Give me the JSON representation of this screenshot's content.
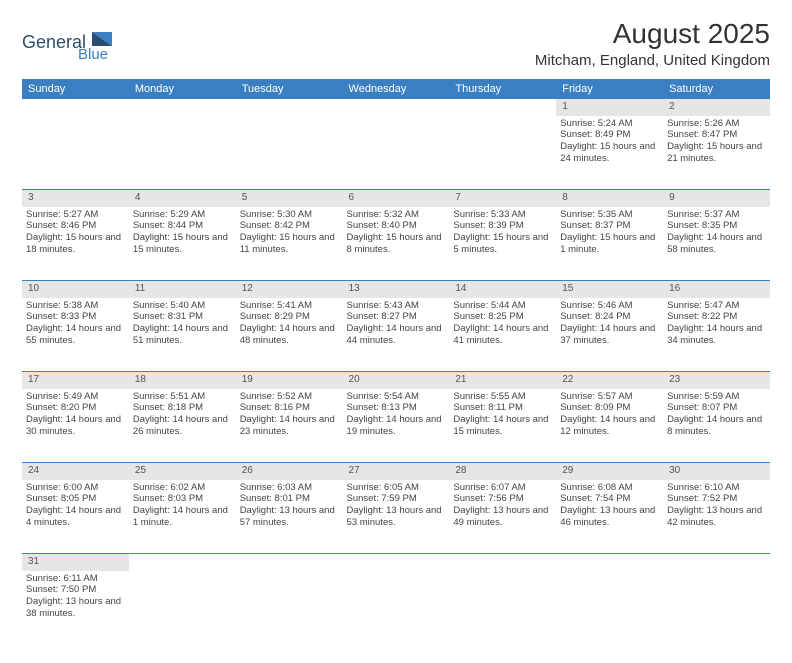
{
  "brand": {
    "name1": "General",
    "name2": "Blue",
    "color_dark": "#2a4e73",
    "color_blue": "#3a7fc2"
  },
  "title": "August 2025",
  "location": "Mitcham, England, United Kingdom",
  "header_bg": "#3a7fc2",
  "header_text_color": "#ffffff",
  "daynum_bg": "#e6e6e6",
  "border_color": "#3a7fc2",
  "text_color": "#444444",
  "day_headers": [
    "Sunday",
    "Monday",
    "Tuesday",
    "Wednesday",
    "Thursday",
    "Friday",
    "Saturday"
  ],
  "weeks": [
    [
      null,
      null,
      null,
      null,
      null,
      {
        "n": "1",
        "sr": "Sunrise: 5:24 AM",
        "ss": "Sunset: 8:49 PM",
        "dl": "Daylight: 15 hours and 24 minutes."
      },
      {
        "n": "2",
        "sr": "Sunrise: 5:26 AM",
        "ss": "Sunset: 8:47 PM",
        "dl": "Daylight: 15 hours and 21 minutes."
      }
    ],
    [
      {
        "n": "3",
        "sr": "Sunrise: 5:27 AM",
        "ss": "Sunset: 8:46 PM",
        "dl": "Daylight: 15 hours and 18 minutes."
      },
      {
        "n": "4",
        "sr": "Sunrise: 5:29 AM",
        "ss": "Sunset: 8:44 PM",
        "dl": "Daylight: 15 hours and 15 minutes."
      },
      {
        "n": "5",
        "sr": "Sunrise: 5:30 AM",
        "ss": "Sunset: 8:42 PM",
        "dl": "Daylight: 15 hours and 11 minutes."
      },
      {
        "n": "6",
        "sr": "Sunrise: 5:32 AM",
        "ss": "Sunset: 8:40 PM",
        "dl": "Daylight: 15 hours and 8 minutes."
      },
      {
        "n": "7",
        "sr": "Sunrise: 5:33 AM",
        "ss": "Sunset: 8:39 PM",
        "dl": "Daylight: 15 hours and 5 minutes."
      },
      {
        "n": "8",
        "sr": "Sunrise: 5:35 AM",
        "ss": "Sunset: 8:37 PM",
        "dl": "Daylight: 15 hours and 1 minute."
      },
      {
        "n": "9",
        "sr": "Sunrise: 5:37 AM",
        "ss": "Sunset: 8:35 PM",
        "dl": "Daylight: 14 hours and 58 minutes."
      }
    ],
    [
      {
        "n": "10",
        "sr": "Sunrise: 5:38 AM",
        "ss": "Sunset: 8:33 PM",
        "dl": "Daylight: 14 hours and 55 minutes."
      },
      {
        "n": "11",
        "sr": "Sunrise: 5:40 AM",
        "ss": "Sunset: 8:31 PM",
        "dl": "Daylight: 14 hours and 51 minutes."
      },
      {
        "n": "12",
        "sr": "Sunrise: 5:41 AM",
        "ss": "Sunset: 8:29 PM",
        "dl": "Daylight: 14 hours and 48 minutes."
      },
      {
        "n": "13",
        "sr": "Sunrise: 5:43 AM",
        "ss": "Sunset: 8:27 PM",
        "dl": "Daylight: 14 hours and 44 minutes."
      },
      {
        "n": "14",
        "sr": "Sunrise: 5:44 AM",
        "ss": "Sunset: 8:25 PM",
        "dl": "Daylight: 14 hours and 41 minutes."
      },
      {
        "n": "15",
        "sr": "Sunrise: 5:46 AM",
        "ss": "Sunset: 8:24 PM",
        "dl": "Daylight: 14 hours and 37 minutes."
      },
      {
        "n": "16",
        "sr": "Sunrise: 5:47 AM",
        "ss": "Sunset: 8:22 PM",
        "dl": "Daylight: 14 hours and 34 minutes."
      }
    ],
    [
      {
        "n": "17",
        "sr": "Sunrise: 5:49 AM",
        "ss": "Sunset: 8:20 PM",
        "dl": "Daylight: 14 hours and 30 minutes."
      },
      {
        "n": "18",
        "sr": "Sunrise: 5:51 AM",
        "ss": "Sunset: 8:18 PM",
        "dl": "Daylight: 14 hours and 26 minutes."
      },
      {
        "n": "19",
        "sr": "Sunrise: 5:52 AM",
        "ss": "Sunset: 8:16 PM",
        "dl": "Daylight: 14 hours and 23 minutes."
      },
      {
        "n": "20",
        "sr": "Sunrise: 5:54 AM",
        "ss": "Sunset: 8:13 PM",
        "dl": "Daylight: 14 hours and 19 minutes."
      },
      {
        "n": "21",
        "sr": "Sunrise: 5:55 AM",
        "ss": "Sunset: 8:11 PM",
        "dl": "Daylight: 14 hours and 15 minutes."
      },
      {
        "n": "22",
        "sr": "Sunrise: 5:57 AM",
        "ss": "Sunset: 8:09 PM",
        "dl": "Daylight: 14 hours and 12 minutes."
      },
      {
        "n": "23",
        "sr": "Sunrise: 5:59 AM",
        "ss": "Sunset: 8:07 PM",
        "dl": "Daylight: 14 hours and 8 minutes."
      }
    ],
    [
      {
        "n": "24",
        "sr": "Sunrise: 6:00 AM",
        "ss": "Sunset: 8:05 PM",
        "dl": "Daylight: 14 hours and 4 minutes."
      },
      {
        "n": "25",
        "sr": "Sunrise: 6:02 AM",
        "ss": "Sunset: 8:03 PM",
        "dl": "Daylight: 14 hours and 1 minute."
      },
      {
        "n": "26",
        "sr": "Sunrise: 6:03 AM",
        "ss": "Sunset: 8:01 PM",
        "dl": "Daylight: 13 hours and 57 minutes."
      },
      {
        "n": "27",
        "sr": "Sunrise: 6:05 AM",
        "ss": "Sunset: 7:59 PM",
        "dl": "Daylight: 13 hours and 53 minutes."
      },
      {
        "n": "28",
        "sr": "Sunrise: 6:07 AM",
        "ss": "Sunset: 7:56 PM",
        "dl": "Daylight: 13 hours and 49 minutes."
      },
      {
        "n": "29",
        "sr": "Sunrise: 6:08 AM",
        "ss": "Sunset: 7:54 PM",
        "dl": "Daylight: 13 hours and 46 minutes."
      },
      {
        "n": "30",
        "sr": "Sunrise: 6:10 AM",
        "ss": "Sunset: 7:52 PM",
        "dl": "Daylight: 13 hours and 42 minutes."
      }
    ],
    [
      {
        "n": "31",
        "sr": "Sunrise: 6:11 AM",
        "ss": "Sunset: 7:50 PM",
        "dl": "Daylight: 13 hours and 38 minutes."
      },
      null,
      null,
      null,
      null,
      null,
      null
    ]
  ]
}
